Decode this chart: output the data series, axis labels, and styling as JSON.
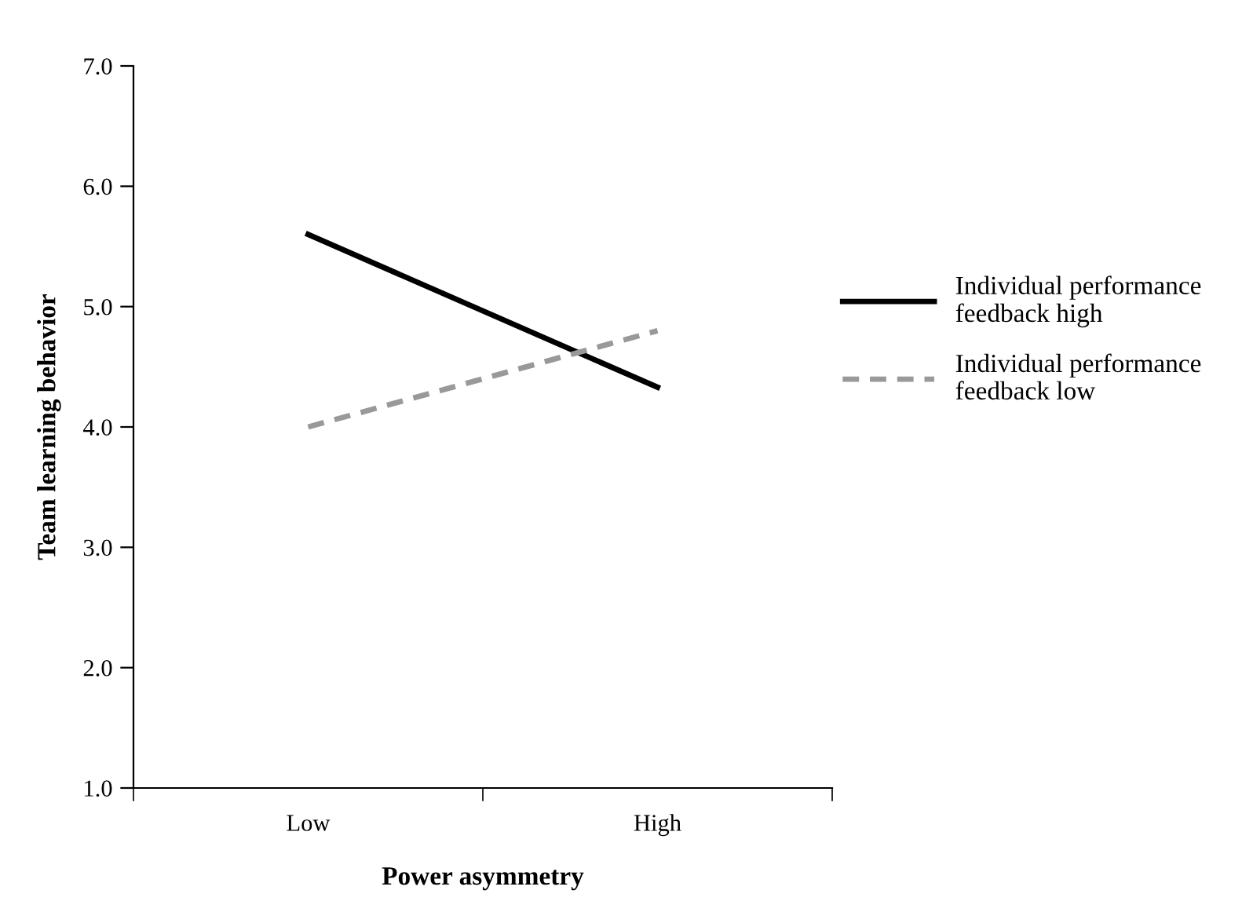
{
  "chart_data": {
    "type": "line",
    "xlabel": "Power asymmetry",
    "ylabel": "Team learning behavior",
    "categories": [
      "Low",
      "High"
    ],
    "series": [
      {
        "name": "Individual performance feedback high",
        "color": "#000000",
        "values": [
          5.6,
          4.33
        ],
        "line_style": "solid"
      },
      {
        "name": "Individual performance feedback low",
        "color": "#999999",
        "values": [
          4.0,
          4.8
        ],
        "line_style": "dashed"
      }
    ],
    "ylim": [
      1.0,
      7.0
    ],
    "yticks": [
      {
        "value": 1,
        "label": "1.0"
      },
      {
        "value": 2,
        "label": "2.0"
      },
      {
        "value": 3,
        "label": "3.0"
      },
      {
        "value": 4,
        "label": "4.0"
      },
      {
        "value": 5,
        "label": "5.0"
      },
      {
        "value": 6,
        "label": "6.0"
      },
      {
        "value": 7,
        "label": "7.0"
      }
    ],
    "grid": false,
    "legend": "right",
    "marker": "none"
  }
}
